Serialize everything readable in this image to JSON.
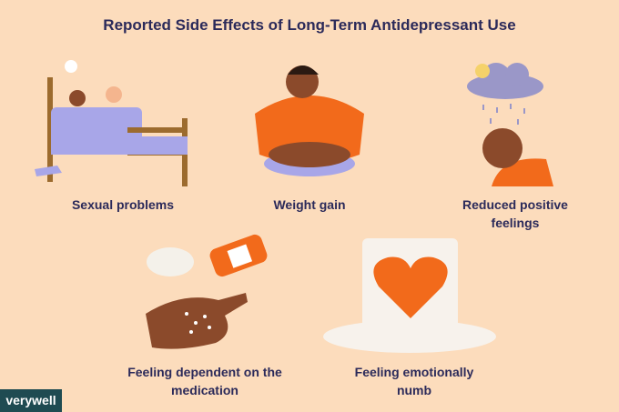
{
  "header": {
    "title": "Reported Side Effects of Long-Term Antidepressant Use"
  },
  "items": [
    {
      "label": "Sexual problems"
    },
    {
      "label": "Weight gain"
    },
    {
      "label": "Reduced positive feelings"
    },
    {
      "label": "Feeling dependent on the medication"
    },
    {
      "label": "Feeling emotionally numb"
    }
  ],
  "brand": "verywell"
}
